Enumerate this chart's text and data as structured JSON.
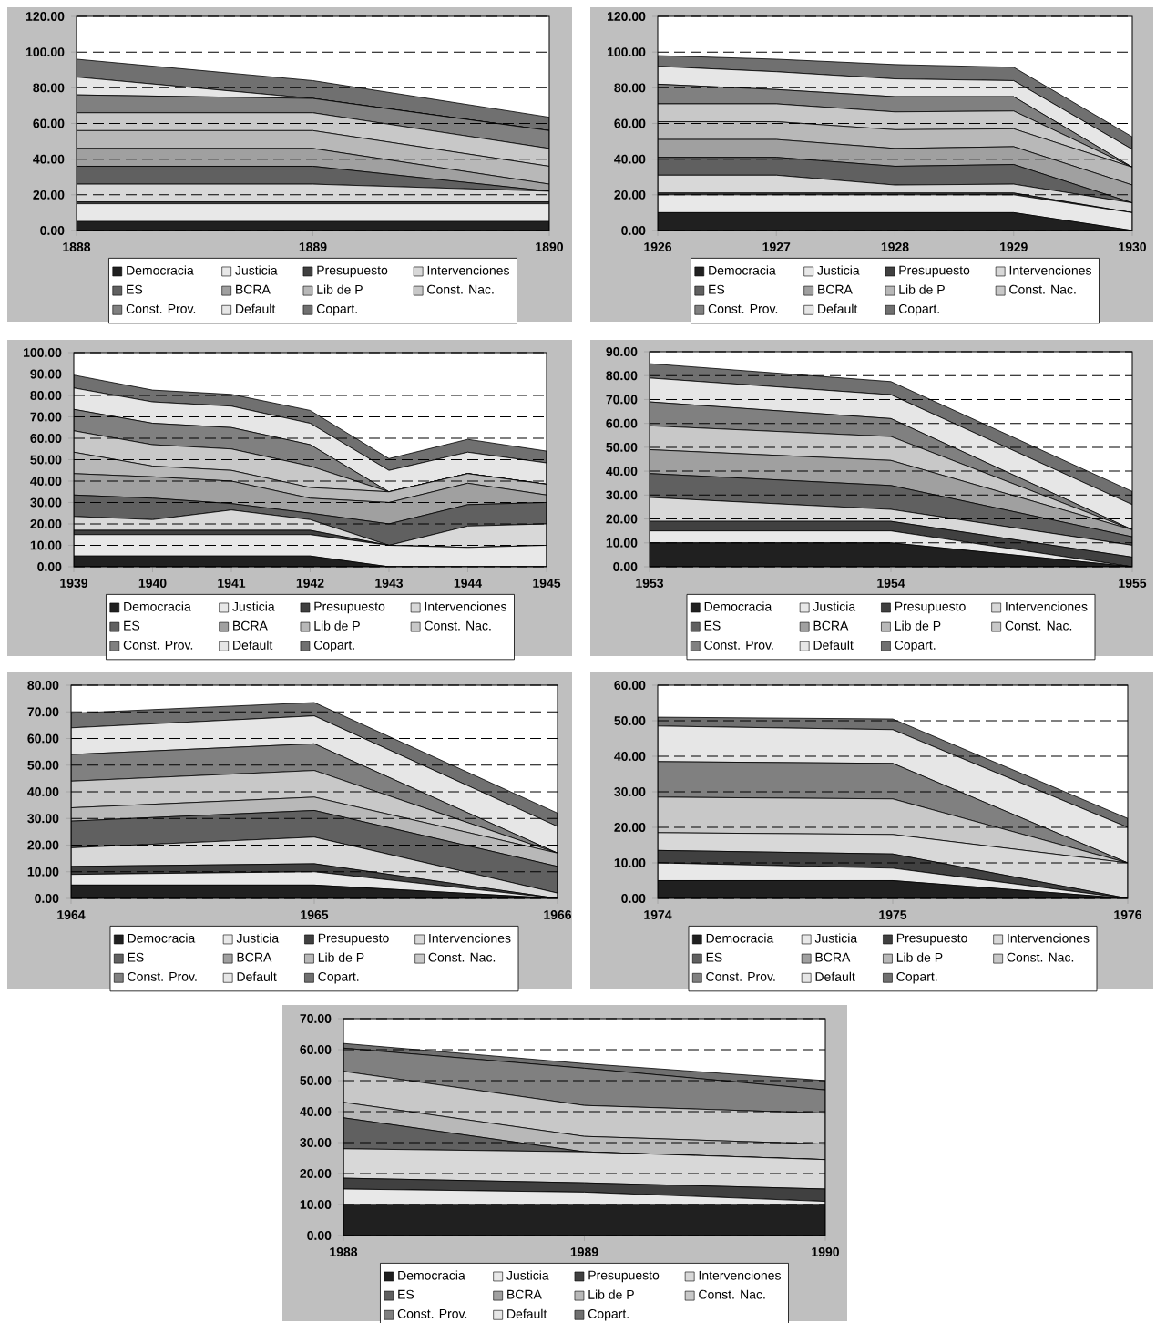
{
  "chart_data": [
    {
      "type": "area",
      "stacked": true,
      "grid": "y",
      "legend": "bottom",
      "categories": [
        "1888",
        "1889",
        "1890"
      ],
      "ylim": [
        0,
        120
      ],
      "yticks": [
        {
          "value": 0,
          "label": "0.00"
        },
        {
          "value": 20,
          "label": "20.00"
        },
        {
          "value": 40,
          "label": "40.00"
        },
        {
          "value": 60,
          "label": "60.00"
        },
        {
          "value": 80,
          "label": "80.00"
        },
        {
          "value": 100,
          "label": "100.00"
        },
        {
          "value": 120,
          "label": "120.00"
        }
      ],
      "series": [
        {
          "name": "Democracia",
          "color": "#202020",
          "values": [
            5,
            5,
            5
          ]
        },
        {
          "name": "Justicia",
          "color": "#e8e8e8",
          "values": [
            10,
            10,
            10
          ]
        },
        {
          "name": "Presupuesto",
          "color": "#404040",
          "values": [
            1,
            1,
            1
          ]
        },
        {
          "name": "Intervenciones",
          "color": "#d8d8d8",
          "values": [
            10,
            10,
            6
          ]
        },
        {
          "name": "ES",
          "color": "#606060",
          "values": [
            10,
            10,
            0
          ]
        },
        {
          "name": "BCRA",
          "color": "#a0a0a0",
          "values": [
            10,
            10,
            4
          ]
        },
        {
          "name": "Lib de P",
          "color": "#b8b8b8",
          "values": [
            10,
            10,
            10
          ]
        },
        {
          "name": "Const. Nac.",
          "color": "#c8c8c8",
          "values": [
            10,
            10,
            10
          ]
        },
        {
          "name": "Const. Prov.",
          "color": "#808080",
          "values": [
            10,
            8,
            10
          ]
        },
        {
          "name": "Default",
          "color": "#e6e6e6",
          "values": [
            10,
            0,
            0
          ]
        },
        {
          "name": "Copart.",
          "color": "#707070",
          "values": [
            10,
            10,
            7.5
          ]
        }
      ]
    },
    {
      "type": "area",
      "stacked": true,
      "grid": "y",
      "legend": "bottom",
      "categories": [
        "1926",
        "1927",
        "1928",
        "1929",
        "1930"
      ],
      "ylim": [
        0,
        120
      ],
      "yticks": [
        {
          "value": 0,
          "label": "0.00"
        },
        {
          "value": 20,
          "label": "20.00"
        },
        {
          "value": 40,
          "label": "40.00"
        },
        {
          "value": 60,
          "label": "60.00"
        },
        {
          "value": 80,
          "label": "80.00"
        },
        {
          "value": 100,
          "label": "100.00"
        },
        {
          "value": 120,
          "label": "120.00"
        }
      ],
      "series": [
        {
          "name": "Democracia",
          "color": "#202020",
          "values": [
            10,
            10,
            10,
            10,
            0
          ]
        },
        {
          "name": "Justicia",
          "color": "#e8e8e8",
          "values": [
            10,
            10,
            10,
            10,
            10
          ]
        },
        {
          "name": "Presupuesto",
          "color": "#404040",
          "values": [
            1,
            1,
            1,
            1,
            0
          ]
        },
        {
          "name": "Intervenciones",
          "color": "#d8d8d8",
          "values": [
            10,
            10,
            4.5,
            5,
            5.5
          ]
        },
        {
          "name": "ES",
          "color": "#606060",
          "values": [
            10,
            10,
            10.5,
            11,
            0
          ]
        },
        {
          "name": "BCRA",
          "color": "#a0a0a0",
          "values": [
            10,
            10,
            10,
            10,
            10
          ]
        },
        {
          "name": "Lib de P",
          "color": "#b8b8b8",
          "values": [
            10,
            10,
            10.5,
            10,
            10
          ]
        },
        {
          "name": "Const. Nac.",
          "color": "#c8c8c8",
          "values": [
            10,
            10,
            10,
            10,
            0
          ]
        },
        {
          "name": "Const. Prov.",
          "color": "#808080",
          "values": [
            11,
            8,
            8.5,
            8,
            0
          ]
        },
        {
          "name": "Default",
          "color": "#e6e6e6",
          "values": [
            10,
            10,
            10,
            9,
            10
          ]
        },
        {
          "name": "Copart.",
          "color": "#707070",
          "values": [
            6,
            7,
            8,
            7.5,
            7
          ]
        }
      ]
    },
    {
      "type": "area",
      "stacked": true,
      "grid": "y",
      "legend": "bottom",
      "categories": [
        "1939",
        "1940",
        "1941",
        "1942",
        "1943",
        "1944",
        "1945"
      ],
      "ylim": [
        0,
        100
      ],
      "yticks": [
        {
          "value": 0,
          "label": "0.00"
        },
        {
          "value": 10,
          "label": "10.00"
        },
        {
          "value": 20,
          "label": "20.00"
        },
        {
          "value": 30,
          "label": "30.00"
        },
        {
          "value": 40,
          "label": "40.00"
        },
        {
          "value": 50,
          "label": "50.00"
        },
        {
          "value": 60,
          "label": "60.00"
        },
        {
          "value": 70,
          "label": "70.00"
        },
        {
          "value": 80,
          "label": "80.00"
        },
        {
          "value": 90,
          "label": "90.00"
        },
        {
          "value": 100,
          "label": "100.00"
        }
      ],
      "series": [
        {
          "name": "Democracia",
          "color": "#202020",
          "values": [
            5,
            5,
            5,
            5,
            0,
            0,
            0
          ]
        },
        {
          "name": "Justicia",
          "color": "#e8e8e8",
          "values": [
            10,
            10,
            10,
            10,
            10,
            9,
            10
          ]
        },
        {
          "name": "Presupuesto",
          "color": "#404040",
          "values": [
            2,
            2,
            2,
            2,
            0,
            0,
            0
          ]
        },
        {
          "name": "Intervenciones",
          "color": "#d8d8d8",
          "values": [
            6.5,
            5,
            9.5,
            5,
            0,
            10,
            10
          ]
        },
        {
          "name": "ES",
          "color": "#606060",
          "values": [
            10,
            10,
            3,
            3,
            10,
            10,
            10
          ]
        },
        {
          "name": "BCRA",
          "color": "#a0a0a0",
          "values": [
            10,
            10,
            10.5,
            7,
            10,
            10,
            3.5
          ]
        },
        {
          "name": "Lib de P",
          "color": "#b8b8b8",
          "values": [
            10,
            5,
            5,
            5,
            5,
            4.5,
            5
          ]
        },
        {
          "name": "Const. Nac.",
          "color": "#c8c8c8",
          "values": [
            10,
            10,
            10,
            10,
            0,
            0,
            0
          ]
        },
        {
          "name": "Const. Prov.",
          "color": "#808080",
          "values": [
            10,
            10,
            10,
            10,
            0,
            0,
            0
          ]
        },
        {
          "name": "Default",
          "color": "#e6e6e6",
          "values": [
            10,
            10,
            10,
            10,
            10,
            10,
            10
          ]
        },
        {
          "name": "Copart.",
          "color": "#707070",
          "values": [
            6,
            5.5,
            5.5,
            6,
            5.5,
            6,
            5.5
          ]
        }
      ]
    },
    {
      "type": "area",
      "stacked": true,
      "grid": "y",
      "legend": "bottom",
      "categories": [
        "1953",
        "1954",
        "1955"
      ],
      "ylim": [
        0,
        90
      ],
      "yticks": [
        {
          "value": 0,
          "label": "0.00"
        },
        {
          "value": 10,
          "label": "10.00"
        },
        {
          "value": 20,
          "label": "20.00"
        },
        {
          "value": 30,
          "label": "30.00"
        },
        {
          "value": 40,
          "label": "40.00"
        },
        {
          "value": 50,
          "label": "50.00"
        },
        {
          "value": 60,
          "label": "60.00"
        },
        {
          "value": 70,
          "label": "70.00"
        },
        {
          "value": 80,
          "label": "80.00"
        },
        {
          "value": 90,
          "label": "90.00"
        }
      ],
      "series": [
        {
          "name": "Democracia",
          "color": "#202020",
          "values": [
            10,
            10,
            0
          ]
        },
        {
          "name": "Justicia",
          "color": "#e8e8e8",
          "values": [
            5,
            5,
            0
          ]
        },
        {
          "name": "Presupuesto",
          "color": "#404040",
          "values": [
            4,
            4,
            4
          ]
        },
        {
          "name": "Intervenciones",
          "color": "#d8d8d8",
          "values": [
            10,
            5,
            5
          ]
        },
        {
          "name": "ES",
          "color": "#606060",
          "values": [
            10,
            10,
            3.5
          ]
        },
        {
          "name": "BCRA",
          "color": "#a0a0a0",
          "values": [
            10,
            10.5,
            3
          ]
        },
        {
          "name": "Lib de P",
          "color": "#b8b8b8",
          "values": [
            null,
            null,
            null
          ]
        },
        {
          "name": "Const. Nac.",
          "color": "#c8c8c8",
          "values": [
            10,
            10,
            0
          ]
        },
        {
          "name": "Const. Prov.",
          "color": "#808080",
          "values": [
            10,
            7.5,
            0
          ]
        },
        {
          "name": "Default",
          "color": "#e6e6e6",
          "values": [
            10,
            10,
            10.5
          ]
        },
        {
          "name": "Copart.",
          "color": "#707070",
          "values": [
            6,
            5.5,
            5.5
          ]
        }
      ]
    },
    {
      "type": "area",
      "stacked": true,
      "grid": "y",
      "legend": "bottom",
      "categories": [
        "1964",
        "1965",
        "1966"
      ],
      "ylim": [
        0,
        80
      ],
      "yticks": [
        {
          "value": 0,
          "label": "0.00"
        },
        {
          "value": 10,
          "label": "10.00"
        },
        {
          "value": 20,
          "label": "20.00"
        },
        {
          "value": 30,
          "label": "30.00"
        },
        {
          "value": 40,
          "label": "40.00"
        },
        {
          "value": 50,
          "label": "50.00"
        },
        {
          "value": 60,
          "label": "60.00"
        },
        {
          "value": 70,
          "label": "70.00"
        },
        {
          "value": 80,
          "label": "80.00"
        }
      ],
      "series": [
        {
          "name": "Democracia",
          "color": "#202020",
          "values": [
            5,
            5,
            0
          ]
        },
        {
          "name": "Justicia",
          "color": "#e8e8e8",
          "values": [
            4,
            5,
            0
          ]
        },
        {
          "name": "Presupuesto",
          "color": "#404040",
          "values": [
            3,
            3,
            0
          ]
        },
        {
          "name": "Intervenciones",
          "color": "#d8d8d8",
          "values": [
            7,
            10,
            2
          ]
        },
        {
          "name": "ES",
          "color": "#606060",
          "values": [
            10,
            10,
            10
          ]
        },
        {
          "name": "BCRA",
          "color": "#a0a0a0",
          "values": [
            null,
            null,
            null
          ]
        },
        {
          "name": "Lib de P",
          "color": "#b8b8b8",
          "values": [
            5,
            5,
            5
          ]
        },
        {
          "name": "Const. Nac.",
          "color": "#c8c8c8",
          "values": [
            10,
            10,
            0
          ]
        },
        {
          "name": "Const. Prov.",
          "color": "#808080",
          "values": [
            10,
            10,
            0
          ]
        },
        {
          "name": "Default",
          "color": "#e6e6e6",
          "values": [
            10,
            10.5,
            10
          ]
        },
        {
          "name": "Copart.",
          "color": "#707070",
          "values": [
            5.5,
            5,
            5
          ]
        }
      ]
    },
    {
      "type": "area",
      "stacked": true,
      "grid": "y",
      "legend": "bottom",
      "categories": [
        "1974",
        "1975",
        "1976"
      ],
      "ylim": [
        0,
        60
      ],
      "yticks": [
        {
          "value": 0,
          "label": "0.00"
        },
        {
          "value": 10,
          "label": "10.00"
        },
        {
          "value": 20,
          "label": "20.00"
        },
        {
          "value": 30,
          "label": "30.00"
        },
        {
          "value": 40,
          "label": "40.00"
        },
        {
          "value": 50,
          "label": "50.00"
        },
        {
          "value": 60,
          "label": "60.00"
        }
      ],
      "series": [
        {
          "name": "Democracia",
          "color": "#202020",
          "values": [
            5,
            5,
            0
          ]
        },
        {
          "name": "Justicia",
          "color": "#e8e8e8",
          "values": [
            5,
            3.5,
            0
          ]
        },
        {
          "name": "Presupuesto",
          "color": "#404040",
          "values": [
            3.5,
            4,
            0
          ]
        },
        {
          "name": "Intervenciones",
          "color": "#d8d8d8",
          "values": [
            5,
            5.5,
            10
          ]
        },
        {
          "name": "ES",
          "color": "#606060",
          "values": [
            null,
            null,
            null
          ]
        },
        {
          "name": "BCRA",
          "color": "#a0a0a0",
          "values": [
            null,
            null,
            null
          ]
        },
        {
          "name": "Lib de P",
          "color": "#b8b8b8",
          "values": [
            null,
            null,
            null
          ]
        },
        {
          "name": "Const. Nac.",
          "color": "#c8c8c8",
          "values": [
            10,
            10,
            0
          ]
        },
        {
          "name": "Const. Prov.",
          "color": "#808080",
          "values": [
            10,
            10,
            0
          ]
        },
        {
          "name": "Default",
          "color": "#e6e6e6",
          "values": [
            10,
            9.5,
            10
          ]
        },
        {
          "name": "Copart.",
          "color": "#707070",
          "values": [
            2.5,
            3,
            2.5
          ]
        }
      ]
    },
    {
      "type": "area",
      "stacked": true,
      "grid": "y",
      "legend": "bottom",
      "categories": [
        "1988",
        "1989",
        "1990"
      ],
      "ylim": [
        0,
        70
      ],
      "yticks": [
        {
          "value": 0,
          "label": "0.00"
        },
        {
          "value": 10,
          "label": "10.00"
        },
        {
          "value": 20,
          "label": "20.00"
        },
        {
          "value": 30,
          "label": "30.00"
        },
        {
          "value": 40,
          "label": "40.00"
        },
        {
          "value": 50,
          "label": "50.00"
        },
        {
          "value": 60,
          "label": "60.00"
        },
        {
          "value": 70,
          "label": "70.00"
        }
      ],
      "series": [
        {
          "name": "Democracia",
          "color": "#202020",
          "values": [
            10,
            10,
            10
          ]
        },
        {
          "name": "Justicia",
          "color": "#e8e8e8",
          "values": [
            5,
            4,
            1
          ]
        },
        {
          "name": "Presupuesto",
          "color": "#404040",
          "values": [
            3.5,
            3,
            4
          ]
        },
        {
          "name": "Intervenciones",
          "color": "#d8d8d8",
          "values": [
            9.5,
            10,
            9.5
          ]
        },
        {
          "name": "ES",
          "color": "#606060",
          "values": [
            10,
            0,
            0
          ]
        },
        {
          "name": "BCRA",
          "color": "#a0a0a0",
          "values": [
            null,
            null,
            null
          ]
        },
        {
          "name": "Lib de P",
          "color": "#b8b8b8",
          "values": [
            5,
            5,
            5
          ]
        },
        {
          "name": "Const. Nac.",
          "color": "#c8c8c8",
          "values": [
            10,
            10,
            10
          ]
        },
        {
          "name": "Const. Prov.",
          "color": "#808080",
          "values": [
            7.5,
            12,
            7.5
          ]
        },
        {
          "name": "Default",
          "color": "#e6e6e6",
          "values": [
            null,
            null,
            null
          ]
        },
        {
          "name": "Copart.",
          "color": "#707070",
          "values": [
            1.5,
            1.5,
            3
          ]
        }
      ]
    }
  ]
}
